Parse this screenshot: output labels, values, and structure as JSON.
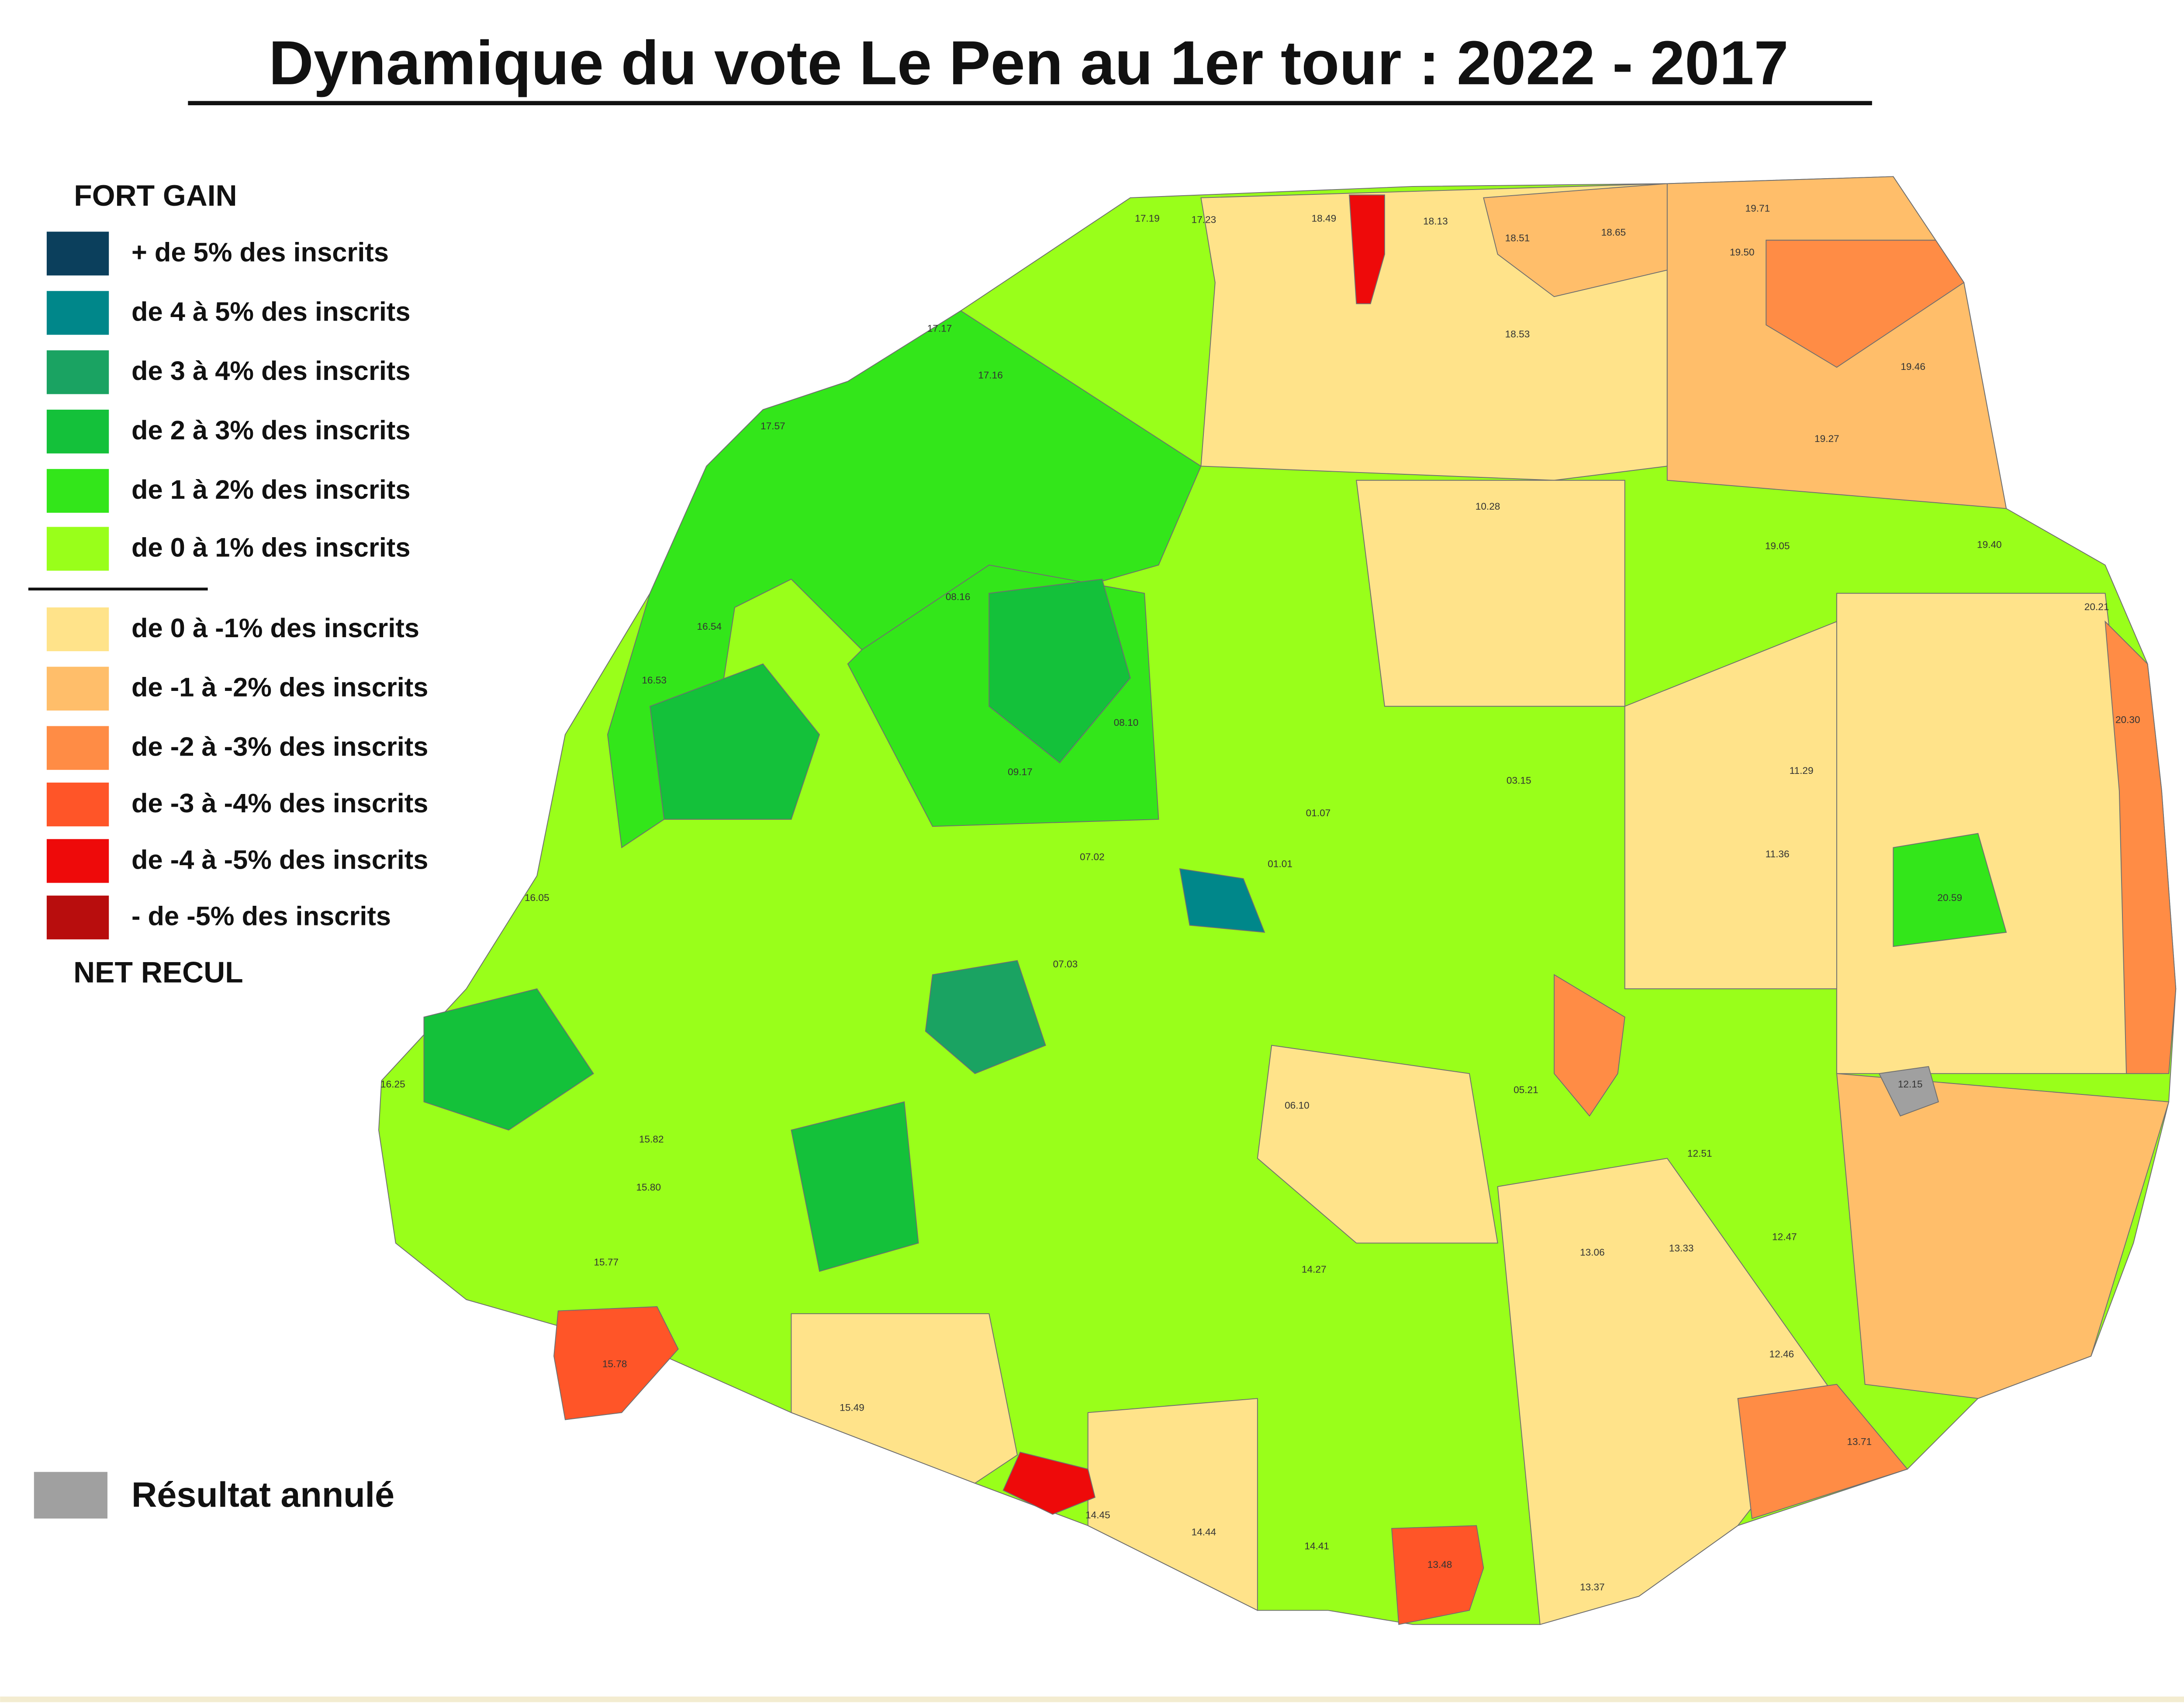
{
  "title": "Dynamique du vote Le Pen au 1er tour : 2022 - 2017",
  "legend": {
    "top_label": "FORT GAIN",
    "bottom_label": "NET RECUL",
    "gain_items": [
      {
        "label": "+ de 5% des inscrits",
        "color": "#0b3f5c"
      },
      {
        "label": "de 4 à 5% des inscrits",
        "color": "#00878a"
      },
      {
        "label": "de 3 à 4% des inscrits",
        "color": "#1aa362"
      },
      {
        "label": "de 2 à 3% des inscrits",
        "color": "#14c13a"
      },
      {
        "label": "de 1 à 2% des inscrits",
        "color": "#33e61a"
      },
      {
        "label": "de 0 à 1% des inscrits",
        "color": "#99ff1a"
      }
    ],
    "loss_items": [
      {
        "label": "de 0 à -1% des inscrits",
        "color": "#ffe38a"
      },
      {
        "label": "de -1 à -2% des inscrits",
        "color": "#ffbe6a"
      },
      {
        "label": "de -2 à -3% des inscrits",
        "color": "#ff8c45"
      },
      {
        "label": "de -3 à -4% des inscrits",
        "color": "#ff5528"
      },
      {
        "label": "de -4 à -5% des inscrits",
        "color": "#ee0a0a"
      },
      {
        "label": "- de -5% des inscrits",
        "color": "#b80d0d"
      }
    ],
    "annulled": {
      "label": "Résultat annulé",
      "color": "#a0a0a0"
    }
  },
  "map": {
    "bureaux": [
      "17.19",
      "17.23",
      "18.49",
      "18.13",
      "18.51",
      "18.65",
      "19.71",
      "19.50",
      "17.17",
      "17.16",
      "18.53",
      "19.46",
      "17.57",
      "19.27",
      "19.40",
      "16.54",
      "08.16",
      "08.10",
      "09.17",
      "10.28",
      "19.05",
      "20.21",
      "16.53",
      "01.07",
      "03.15",
      "11.29",
      "20.30",
      "16.05",
      "07.02",
      "01.01",
      "11.36",
      "20.59",
      "16.25",
      "15.82",
      "07.03",
      "06.10",
      "05.21",
      "12.51",
      "12.47",
      "15.80",
      "15.77",
      "15.78",
      "14.27",
      "13.33",
      "13.06",
      "12.46",
      "15.49",
      "14.41",
      "13.48",
      "13.71",
      "14.45",
      "14.44",
      "13.37",
      "12.15"
    ]
  }
}
